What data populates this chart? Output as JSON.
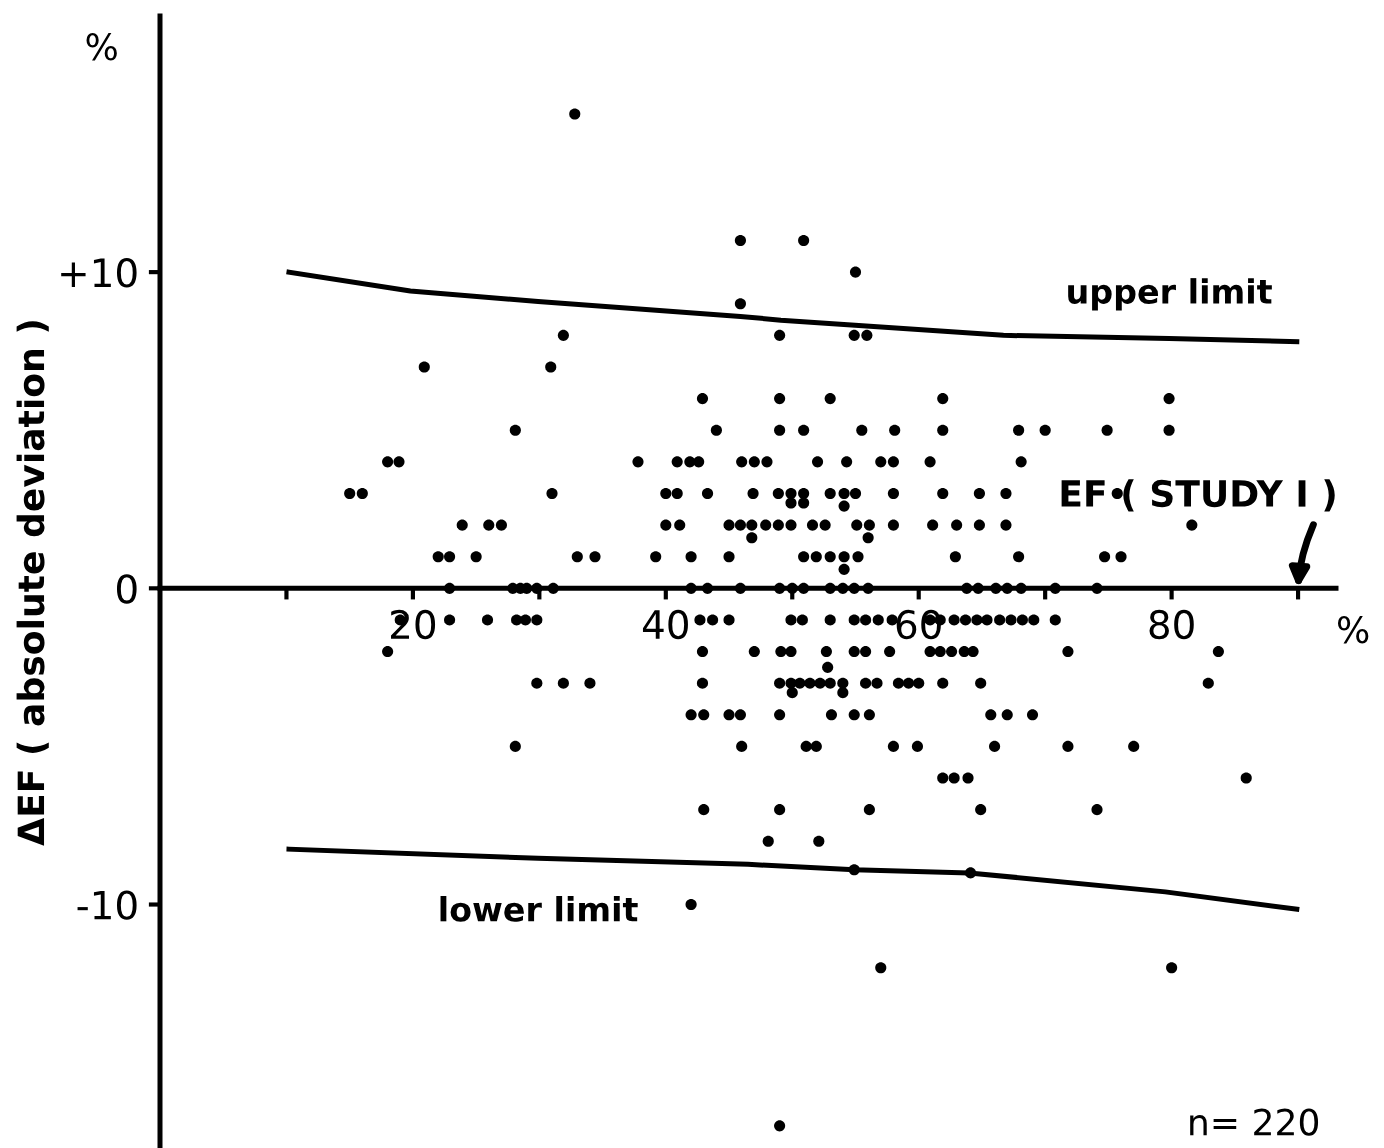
{
  "chart_data": {
    "type": "scatter",
    "ylabel": "ΔEF ( absolute deviation )",
    "xlim": [
      0,
      93
    ],
    "ylim": [
      -17.7,
      18.1
    ],
    "xticks": [
      {
        "value": 10,
        "label": null
      },
      20,
      {
        "value": 30,
        "label": null
      },
      40,
      {
        "value": 50,
        "label": null
      },
      60,
      {
        "value": 70,
        "label": null
      },
      80,
      {
        "value": 90,
        "label": null
      }
    ],
    "yticks": [
      {
        "value": -10,
        "label": "-10"
      },
      0,
      {
        "value": 10,
        "label": "+10"
      }
    ],
    "grid": false,
    "legend": false,
    "annotations": [
      "%",
      "%",
      "EF ( STUDY I )",
      "n= 220"
    ],
    "series": [
      {
        "marker": "circle",
        "color": "#000000",
        "x": [
          32.8,
          45.9,
          50.9,
          55.0,
          45.9,
          31.9,
          49.0,
          54.9,
          55.9,
          20.9,
          30.9,
          42.9,
          49.0,
          53.0,
          61.9,
          79.8,
          28.1,
          44.0,
          49.0,
          50.9,
          55.5,
          58.1,
          61.9,
          67.9,
          70.0,
          74.9,
          79.8,
          18.0,
          18.9,
          37.8,
          40.9,
          41.9,
          42.6,
          46.0,
          47.0,
          48.0,
          52.0,
          54.3,
          57.0,
          58.0,
          60.9,
          68.1,
          15.0,
          16.0,
          31.0,
          40.0,
          40.9,
          43.3,
          46.9,
          48.9,
          49.9,
          50.9,
          53.0,
          54.1,
          55.0,
          58.0,
          61.9,
          64.8,
          66.9,
          75.7,
          49.9,
          50.9,
          54.1,
          23.9,
          26.0,
          27.0,
          40.0,
          41.1,
          45.0,
          45.9,
          46.8,
          47.9,
          48.9,
          49.9,
          51.6,
          52.6,
          55.1,
          56.1,
          58.0,
          61.1,
          63.0,
          64.8,
          66.9,
          81.6,
          46.8,
          56.0,
          22.0,
          22.9,
          25.0,
          33.0,
          34.4,
          39.2,
          42.0,
          45.0,
          50.9,
          51.9,
          53.0,
          54.1,
          55.2,
          62.9,
          67.9,
          74.7,
          76.0,
          54.1,
          22.9,
          27.9,
          28.5,
          29.0,
          29.8,
          31.1,
          42.0,
          43.3,
          45.9,
          49.0,
          50.0,
          50.9,
          53.0,
          54.0,
          54.9,
          56.0,
          63.8,
          64.7,
          66.1,
          67.0,
          68.1,
          70.8,
          74.1,
          19.0,
          22.9,
          25.9,
          28.2,
          28.9,
          29.8,
          42.7,
          43.7,
          45.0,
          49.9,
          50.8,
          53.0,
          54.9,
          55.8,
          56.8,
          57.9,
          60.9,
          61.7,
          62.8,
          63.7,
          64.6,
          65.4,
          66.4,
          67.3,
          68.2,
          69.1,
          70.8,
          18.0,
          42.9,
          47.0,
          49.1,
          49.9,
          52.7,
          54.9,
          55.8,
          57.7,
          60.9,
          61.7,
          62.6,
          63.6,
          64.3,
          71.8,
          83.7,
          52.8,
          29.8,
          31.9,
          34.0,
          42.9,
          49.0,
          49.9,
          50.6,
          51.4,
          52.2,
          53.0,
          54.0,
          55.8,
          56.7,
          58.4,
          59.2,
          60.0,
          61.9,
          64.9,
          82.9,
          50.0,
          54.0,
          42.0,
          43.0,
          45.0,
          45.9,
          49.0,
          53.1,
          54.9,
          56.1,
          65.7,
          67.0,
          69.0,
          28.1,
          46.0,
          51.1,
          51.9,
          58.0,
          59.9,
          66.0,
          71.8,
          77.0,
          61.9,
          62.8,
          63.9,
          85.9,
          43.0,
          49.0,
          56.1,
          64.9,
          74.1,
          48.1,
          52.1,
          54.9,
          64.1,
          42.0,
          57.0,
          80.0,
          49.0
        ],
        "values": [
          15,
          11,
          11,
          10,
          9,
          8,
          8,
          8,
          8,
          7,
          7,
          6,
          6,
          6,
          6,
          6,
          5,
          5,
          5,
          5,
          5,
          5,
          5,
          5,
          5,
          5,
          5,
          4,
          4,
          4,
          4,
          4,
          4,
          4,
          4,
          4,
          4,
          4,
          4,
          4,
          4,
          4,
          3,
          3,
          3,
          3,
          3,
          3,
          3,
          3,
          3,
          3,
          3,
          3,
          3,
          3,
          3,
          3,
          3,
          3,
          2.7,
          2.7,
          2.6,
          2,
          2,
          2,
          2,
          2,
          2,
          2,
          2,
          2,
          2,
          2,
          2,
          2,
          2,
          2,
          2,
          2,
          2,
          2,
          2,
          2,
          1.6,
          1.6,
          1,
          1,
          1,
          1,
          1,
          1,
          1,
          1,
          1,
          1,
          1,
          1,
          1,
          1,
          1,
          1,
          1,
          0.6,
          0,
          0,
          0,
          0,
          0,
          0,
          0,
          0,
          0,
          0,
          0,
          0,
          0,
          0,
          0,
          0,
          0,
          0,
          0,
          0,
          0,
          0,
          0,
          -1,
          -1,
          -1,
          -1,
          -1,
          -1,
          -1,
          -1,
          -1,
          -1,
          -1,
          -1,
          -1,
          -1,
          -1,
          -1,
          -1,
          -1,
          -1,
          -1,
          -1,
          -1,
          -1,
          -1,
          -1,
          -1,
          -1,
          -2,
          -2,
          -2,
          -2,
          -2,
          -2,
          -2,
          -2,
          -2,
          -2,
          -2,
          -2,
          -2,
          -2,
          -2,
          -2,
          -2.5,
          -3,
          -3,
          -3,
          -3,
          -3,
          -3,
          -3,
          -3,
          -3,
          -3,
          -3,
          -3,
          -3,
          -3,
          -3,
          -3,
          -3,
          -3,
          -3,
          -3.3,
          -3.3,
          -4,
          -4,
          -4,
          -4,
          -4,
          -4,
          -4,
          -4,
          -4,
          -4,
          -4,
          -5,
          -5,
          -5,
          -5,
          -5,
          -5,
          -5,
          -5,
          -5,
          -6,
          -6,
          -6,
          -6,
          -7,
          -7,
          -7,
          -7,
          -7,
          -8,
          -8,
          -8.9,
          -9,
          -10,
          -12,
          -12,
          -17
        ]
      },
      {
        "type": "line",
        "marker": "none",
        "name": "upper limit",
        "color": "#000000",
        "x": [
          10.2,
          19.8,
          29.9,
          45.9,
          49.1,
          66.7,
          79.8,
          89.9
        ],
        "values": [
          10.0,
          9.4,
          9.07,
          8.6,
          8.48,
          8.0,
          7.9,
          7.8
        ]
      },
      {
        "type": "line",
        "marker": "none",
        "name": "lower limit",
        "color": "#000000",
        "x": [
          10.2,
          29.9,
          46.5,
          54.9,
          64.0,
          79.5,
          89.9
        ],
        "values": [
          -8.25,
          -8.54,
          -8.73,
          -8.9,
          -9.0,
          -9.6,
          -10.15
        ]
      }
    ]
  }
}
